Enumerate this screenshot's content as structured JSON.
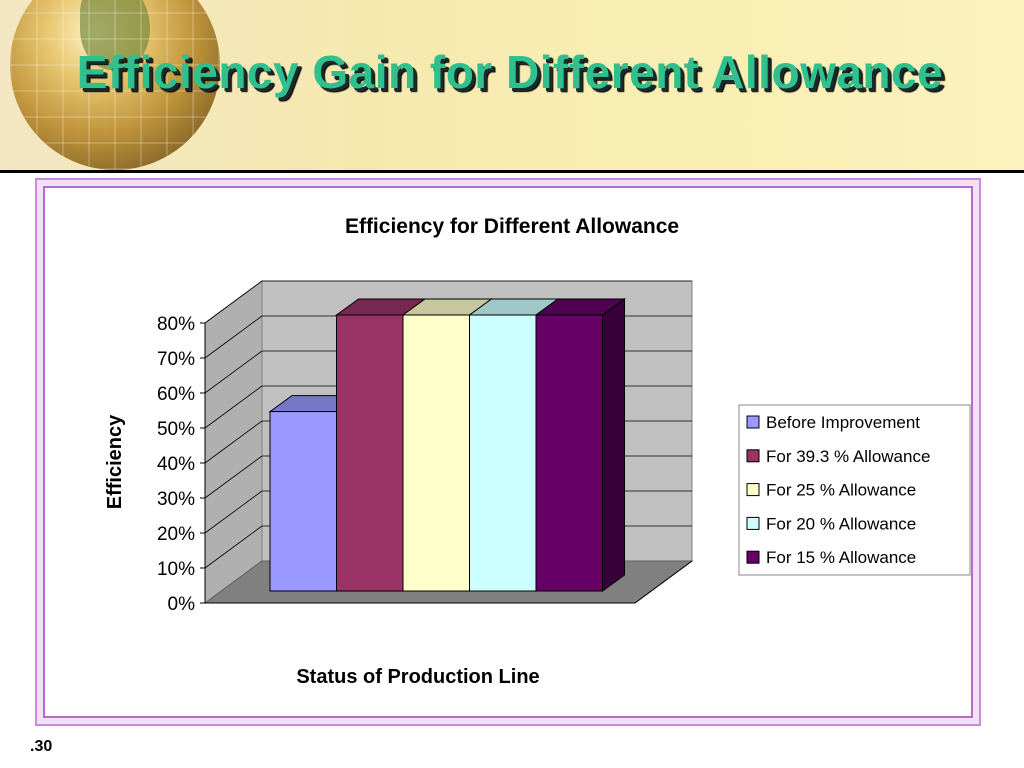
{
  "slide": {
    "title": "Efficiency Gain for Different Allowance",
    "number": ".30"
  },
  "chart_data": {
    "type": "bar",
    "title": "Efficiency for Different Allowance",
    "xlabel": "Status of Production Line",
    "ylabel": "Efficiency",
    "ylim": [
      0,
      0.8
    ],
    "yticks": [
      "0%",
      "10%",
      "20%",
      "30%",
      "40%",
      "50%",
      "60%",
      "70%",
      "80%"
    ],
    "grid": true,
    "legend_position": "right",
    "categories": [
      ""
    ],
    "series": [
      {
        "name": "Before Improvement",
        "values": [
          0.52
        ],
        "color": "#9999ff"
      },
      {
        "name": "For 39.3 % Allowance",
        "values": [
          0.8
        ],
        "color": "#993366"
      },
      {
        "name": "For 25 % Allowance",
        "values": [
          0.8
        ],
        "color": "#ffffcc"
      },
      {
        "name": "For 20 % Allowance",
        "values": [
          0.8
        ],
        "color": "#ccffff"
      },
      {
        "name": "For 15 % Allowance",
        "values": [
          0.8
        ],
        "color": "#660066"
      }
    ]
  }
}
